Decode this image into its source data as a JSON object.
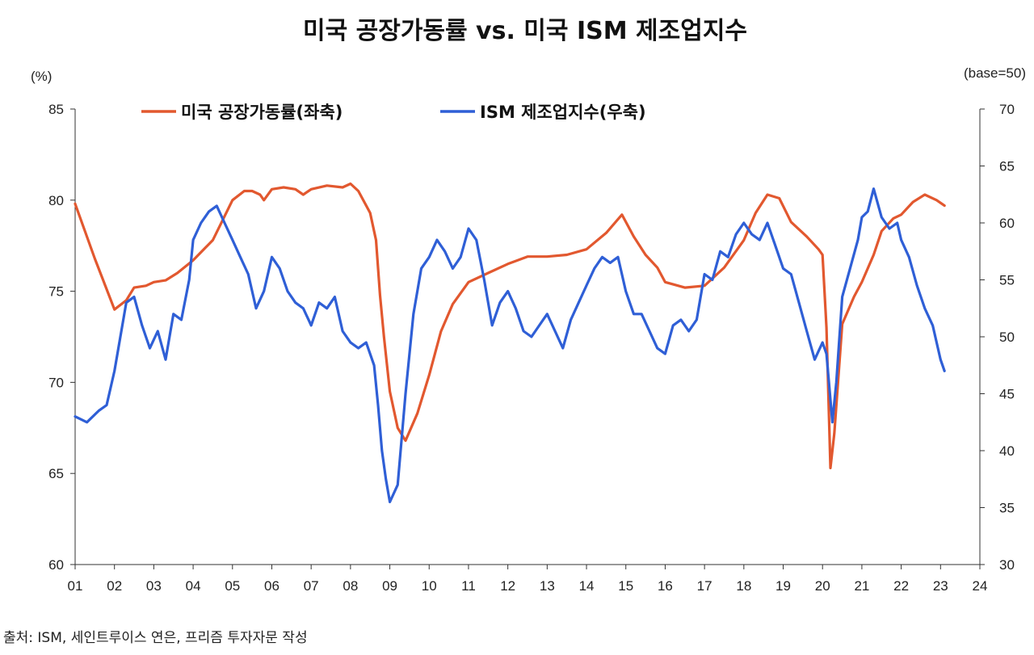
{
  "chart_data": {
    "type": "line",
    "title": "미국 공장가동률 vs. 미국 ISM 제조업지수",
    "source": "출처: ISM, 세인트루이스 연은, 프리즘 투자자문 작성",
    "left_axis": {
      "unit_label": "(%)",
      "min": 60,
      "max": 85,
      "ticks": [
        "60",
        "65",
        "70",
        "75",
        "80",
        "85"
      ]
    },
    "right_axis": {
      "unit_label": "(base=50)",
      "min": 30,
      "max": 70,
      "ticks": [
        "30",
        "35",
        "40",
        "45",
        "50",
        "55",
        "60",
        "65",
        "70"
      ]
    },
    "x_axis": {
      "start": 2001.0,
      "end": 2024.0,
      "ticks": [
        "01",
        "02",
        "03",
        "04",
        "05",
        "06",
        "07",
        "08",
        "09",
        "10",
        "11",
        "12",
        "13",
        "14",
        "15",
        "16",
        "17",
        "18",
        "19",
        "20",
        "21",
        "22",
        "23",
        "24"
      ]
    },
    "legend_position": "top-left",
    "grid": false,
    "series": [
      {
        "name": "미국 공장가동률(좌축)",
        "axis": "left",
        "color": "#E2582F",
        "x": [
          2001.0,
          2001.5,
          2002.0,
          2002.3,
          2002.5,
          2002.8,
          2003.0,
          2003.3,
          2003.6,
          2004.0,
          2004.5,
          2005.0,
          2005.3,
          2005.5,
          2005.7,
          2005.8,
          2006.0,
          2006.3,
          2006.6,
          2006.8,
          2007.0,
          2007.4,
          2007.8,
          2008.0,
          2008.2,
          2008.5,
          2008.65,
          2008.75,
          2008.85,
          2009.0,
          2009.2,
          2009.4,
          2009.7,
          2010.0,
          2010.3,
          2010.6,
          2011.0,
          2011.5,
          2012.0,
          2012.5,
          2013.0,
          2013.5,
          2014.0,
          2014.5,
          2014.9,
          2015.2,
          2015.5,
          2015.8,
          2016.0,
          2016.5,
          2017.0,
          2017.5,
          2018.0,
          2018.3,
          2018.6,
          2018.9,
          2019.2,
          2019.6,
          2019.9,
          2020.0,
          2020.1,
          2020.2,
          2020.3,
          2020.5,
          2020.8,
          2021.0,
          2021.3,
          2021.5,
          2021.8,
          2022.0,
          2022.3,
          2022.6,
          2022.9,
          2023.1
        ],
        "y": [
          79.8,
          76.8,
          74.0,
          74.5,
          75.2,
          75.3,
          75.5,
          75.6,
          76.0,
          76.7,
          77.8,
          80.0,
          80.5,
          80.5,
          80.3,
          80.0,
          80.6,
          80.7,
          80.6,
          80.3,
          80.6,
          80.8,
          80.7,
          80.9,
          80.5,
          79.3,
          77.8,
          74.8,
          72.5,
          69.5,
          67.5,
          66.8,
          68.3,
          70.4,
          72.8,
          74.3,
          75.5,
          76.0,
          76.5,
          76.9,
          76.9,
          77.0,
          77.3,
          78.2,
          79.2,
          78.0,
          77.0,
          76.3,
          75.5,
          75.2,
          75.3,
          76.3,
          77.8,
          79.3,
          80.3,
          80.1,
          78.8,
          78.0,
          77.3,
          77.0,
          73.0,
          65.3,
          67.2,
          73.2,
          74.7,
          75.5,
          77.0,
          78.3,
          79.0,
          79.2,
          79.9,
          80.3,
          80.0,
          79.7
        ]
      },
      {
        "name": "ISM 제조업지수(우축)",
        "axis": "right",
        "color": "#2F5FD6",
        "x": [
          2001.0,
          2001.3,
          2001.6,
          2001.8,
          2002.0,
          2002.3,
          2002.5,
          2002.7,
          2002.9,
          2003.1,
          2003.3,
          2003.5,
          2003.7,
          2003.9,
          2004.0,
          2004.2,
          2004.4,
          2004.6,
          2004.8,
          2005.0,
          2005.2,
          2005.4,
          2005.6,
          2005.8,
          2006.0,
          2006.2,
          2006.4,
          2006.6,
          2006.8,
          2007.0,
          2007.2,
          2007.4,
          2007.6,
          2007.8,
          2008.0,
          2008.2,
          2008.4,
          2008.6,
          2008.7,
          2008.8,
          2008.9,
          2009.0,
          2009.2,
          2009.4,
          2009.6,
          2009.8,
          2010.0,
          2010.2,
          2010.4,
          2010.6,
          2010.8,
          2011.0,
          2011.2,
          2011.4,
          2011.6,
          2011.8,
          2012.0,
          2012.2,
          2012.4,
          2012.6,
          2012.8,
          2013.0,
          2013.2,
          2013.4,
          2013.6,
          2013.8,
          2014.0,
          2014.2,
          2014.4,
          2014.6,
          2014.8,
          2015.0,
          2015.2,
          2015.4,
          2015.6,
          2015.8,
          2016.0,
          2016.2,
          2016.4,
          2016.6,
          2016.8,
          2017.0,
          2017.2,
          2017.4,
          2017.6,
          2017.8,
          2018.0,
          2018.2,
          2018.4,
          2018.6,
          2018.8,
          2019.0,
          2019.2,
          2019.4,
          2019.6,
          2019.8,
          2020.0,
          2020.1,
          2020.25,
          2020.35,
          2020.5,
          2020.7,
          2020.9,
          2021.0,
          2021.15,
          2021.3,
          2021.5,
          2021.7,
          2021.9,
          2022.0,
          2022.2,
          2022.4,
          2022.6,
          2022.8,
          2023.0,
          2023.1
        ],
        "y": [
          43.0,
          42.5,
          43.5,
          44.0,
          47.0,
          53.0,
          53.5,
          51.0,
          49.0,
          50.5,
          48.0,
          52.0,
          51.5,
          55.0,
          58.5,
          60.0,
          61.0,
          61.5,
          60.0,
          58.5,
          57.0,
          55.5,
          52.5,
          54.0,
          57.0,
          56.0,
          54.0,
          53.0,
          52.5,
          51.0,
          53.0,
          52.5,
          53.5,
          50.5,
          49.5,
          49.0,
          49.5,
          47.5,
          44.0,
          40.0,
          37.5,
          35.5,
          37.0,
          45.0,
          52.0,
          56.0,
          57.0,
          58.5,
          57.5,
          56.0,
          57.0,
          59.5,
          58.5,
          55.0,
          51.0,
          53.0,
          54.0,
          52.5,
          50.5,
          50.0,
          51.0,
          52.0,
          50.5,
          49.0,
          51.5,
          53.0,
          54.5,
          56.0,
          57.0,
          56.5,
          57.0,
          54.0,
          52.0,
          52.0,
          50.5,
          49.0,
          48.5,
          51.0,
          51.5,
          50.5,
          51.5,
          55.5,
          55.0,
          57.5,
          57.0,
          59.0,
          60.0,
          59.0,
          58.5,
          60.0,
          58.0,
          56.0,
          55.5,
          53.0,
          50.5,
          48.0,
          49.5,
          48.5,
          42.5,
          46.0,
          53.5,
          56.0,
          58.5,
          60.5,
          61.0,
          63.0,
          60.5,
          59.5,
          60.0,
          58.5,
          57.0,
          54.5,
          52.5,
          51.0,
          48.0,
          47.0
        ]
      }
    ]
  }
}
